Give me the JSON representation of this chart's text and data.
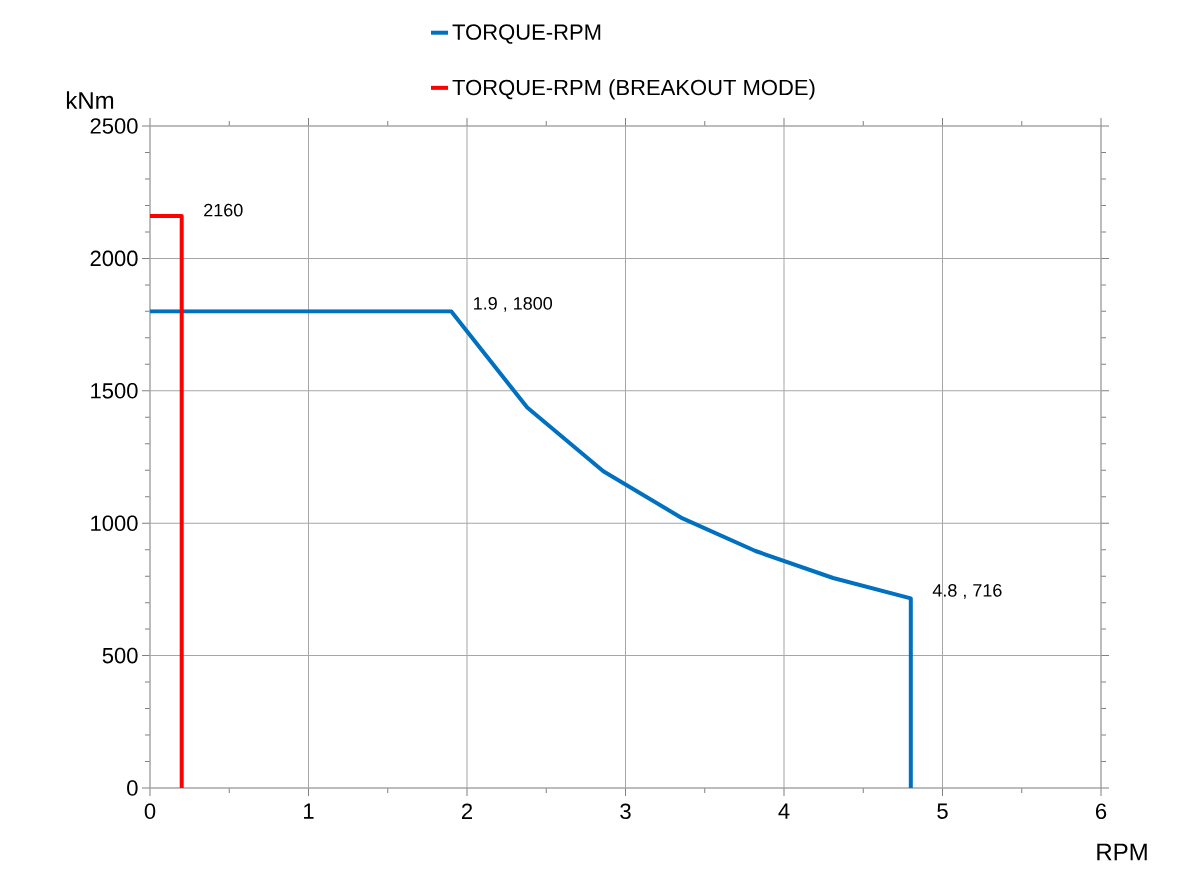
{
  "chart_data": {
    "type": "line",
    "xlabel": "RPM",
    "ylabel": "kNm",
    "xlim": [
      0,
      6
    ],
    "ylim": [
      0,
      2500
    ],
    "xticks": [
      0,
      1,
      2,
      3,
      4,
      5,
      6
    ],
    "yticks": [
      0,
      500,
      1000,
      1500,
      2000,
      2500
    ],
    "grid": true,
    "legend": "top",
    "marker": "none",
    "line_style": "solid",
    "series": [
      {
        "name": "TORQUE-RPM",
        "color": "#0070c0",
        "x": [
          0,
          1.9,
          2.38,
          2.86,
          3.36,
          3.82,
          4.31,
          4.8,
          4.8
        ],
        "values": [
          1800,
          1800,
          1437,
          1196,
          1018,
          895,
          793,
          716,
          0
        ]
      },
      {
        "name": "TORQUE-RPM (BREAKOUT MODE)",
        "color": "#ff0000",
        "x": [
          0,
          0.2,
          0.2
        ],
        "values": [
          2160,
          2160,
          0
        ]
      }
    ],
    "annotations": [
      {
        "text": "2160",
        "x": 0.2,
        "y": 2160
      },
      {
        "text": "1.9 , 1800",
        "x": 1.9,
        "y": 1800
      },
      {
        "text": "4.8 , 716",
        "x": 4.8,
        "y": 716
      }
    ]
  }
}
